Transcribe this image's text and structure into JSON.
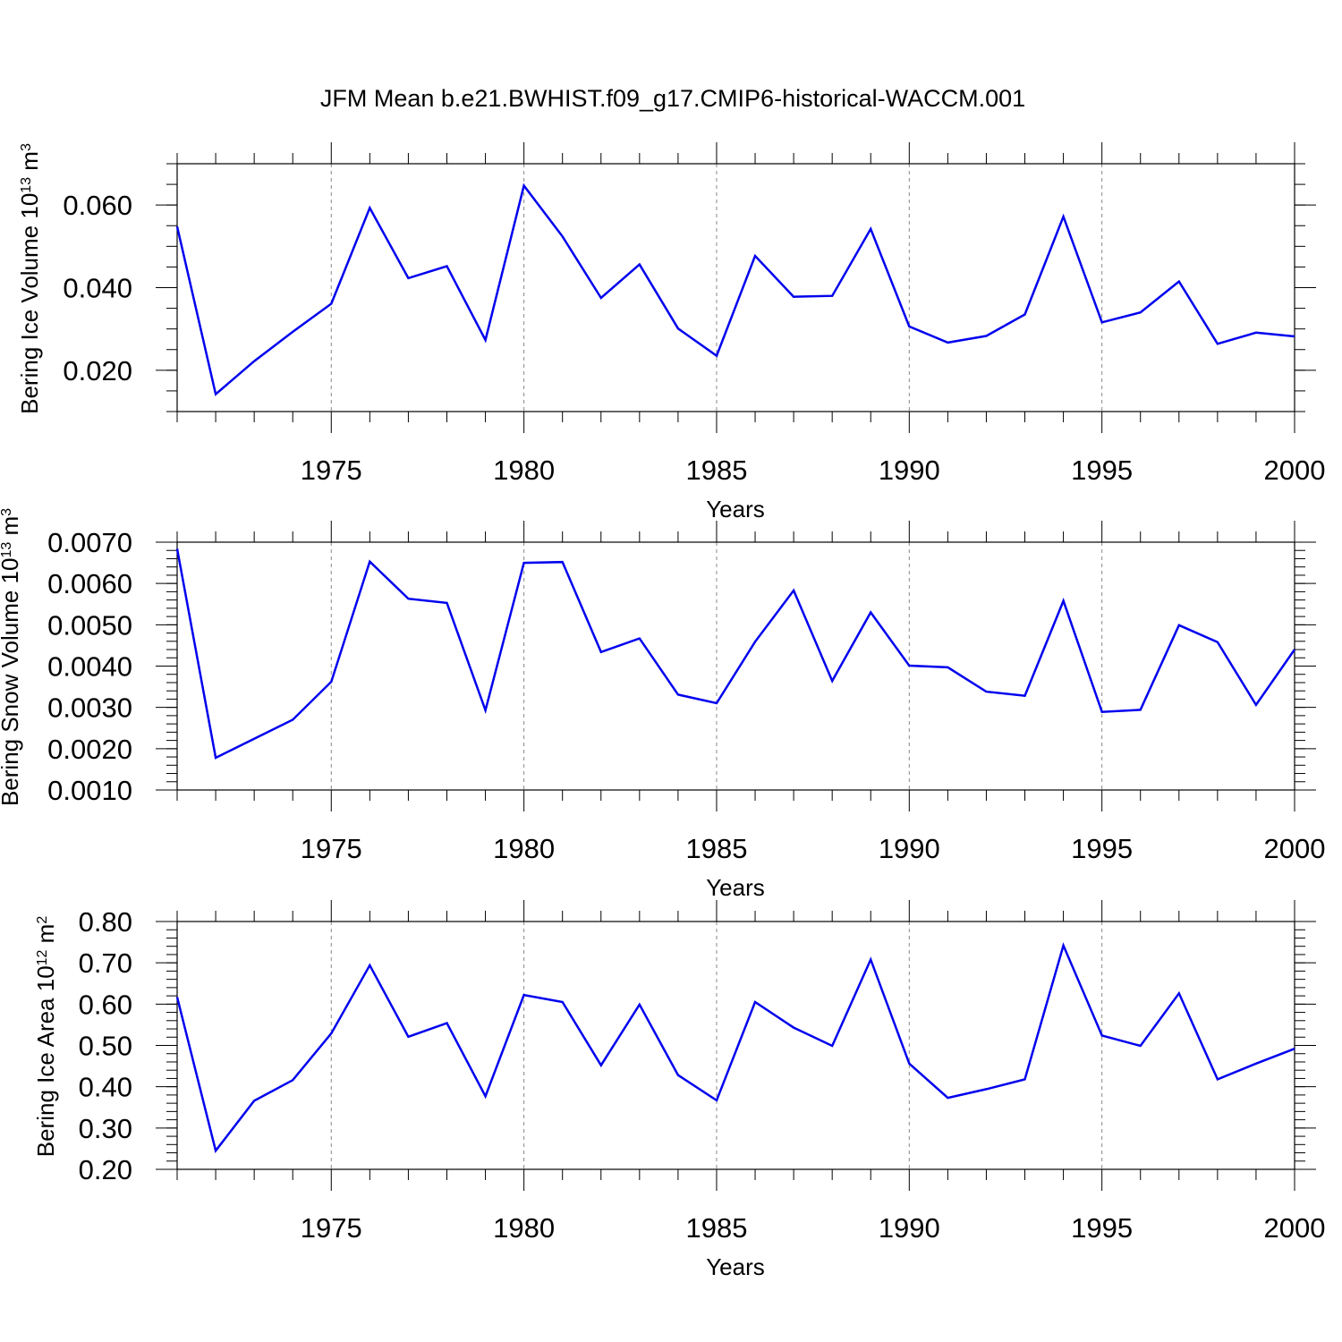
{
  "chart_data": {
    "title": "JFM Mean b.e21.BWHIST.f09_g17.CMIP6-historical-WACCM.001",
    "type": "line",
    "line_color": "#0000ee",
    "grid_color": "#888888",
    "x": [
      1971,
      1972,
      1973,
      1974,
      1975,
      1976,
      1977,
      1978,
      1979,
      1980,
      1981,
      1982,
      1983,
      1984,
      1985,
      1986,
      1987,
      1988,
      1989,
      1990,
      1991,
      1992,
      1993,
      1994,
      1995,
      1996,
      1997,
      1998,
      1999,
      2000
    ],
    "xlim": [
      1971,
      2000
    ],
    "x_ticks": [
      1975,
      1980,
      1985,
      1990,
      1995,
      2000
    ],
    "x_tick_labels": [
      "1975",
      "1980",
      "1985",
      "1990",
      "1995",
      "2000"
    ],
    "panels": [
      {
        "xlabel": "Years",
        "ylabel_main": "Bering Ice Volume 10",
        "ylabel_exp": "13",
        "ylabel_unit": " m",
        "ylabel_unit_exp": "3",
        "ylim": [
          0.01,
          0.07
        ],
        "y_ticks": [
          0.02,
          0.04,
          0.06
        ],
        "y_tick_labels": [
          "0.020",
          "0.040",
          "0.060"
        ],
        "y_minor_step": 0.005,
        "values": [
          0.0548,
          0.0142,
          0.0222,
          0.0293,
          0.0361,
          0.0593,
          0.0423,
          0.0452,
          0.0273,
          0.0647,
          0.0524,
          0.0375,
          0.0456,
          0.0301,
          0.0235,
          0.0477,
          0.0378,
          0.038,
          0.0542,
          0.0306,
          0.0267,
          0.0283,
          0.0335,
          0.0572,
          0.0316,
          0.034,
          0.0415,
          0.0264,
          0.0291,
          0.0282
        ]
      },
      {
        "xlabel": "Years",
        "ylabel_main": "Bering Snow Volume 10",
        "ylabel_exp": "13",
        "ylabel_unit": " m",
        "ylabel_unit_exp": "3",
        "ylim": [
          0.001,
          0.007
        ],
        "y_ticks": [
          0.001,
          0.002,
          0.003,
          0.004,
          0.005,
          0.006,
          0.007
        ],
        "y_tick_labels": [
          "0.0010",
          "0.0020",
          "0.0030",
          "0.0040",
          "0.0050",
          "0.0060",
          "0.0070"
        ],
        "y_minor_step": 0.0002,
        "values": [
          0.00684,
          0.00178,
          0.00224,
          0.0027,
          0.00362,
          0.00653,
          0.00563,
          0.00553,
          0.00293,
          0.0065,
          0.00652,
          0.00434,
          0.00467,
          0.00331,
          0.0031,
          0.00459,
          0.00583,
          0.00364,
          0.0053,
          0.00401,
          0.00397,
          0.00338,
          0.00328,
          0.00558,
          0.00289,
          0.00294,
          0.00499,
          0.00458,
          0.00306,
          0.0044
        ]
      },
      {
        "xlabel": "Years",
        "ylabel_main": "Bering Ice Area 10",
        "ylabel_exp": "12",
        "ylabel_unit": " m",
        "ylabel_unit_exp": "2",
        "ylim": [
          0.2,
          0.8
        ],
        "y_ticks": [
          0.2,
          0.3,
          0.4,
          0.5,
          0.6,
          0.7,
          0.8
        ],
        "y_tick_labels": [
          "0.20",
          "0.30",
          "0.40",
          "0.50",
          "0.60",
          "0.70",
          "0.80"
        ],
        "y_minor_step": 0.02,
        "values": [
          0.617,
          0.245,
          0.366,
          0.416,
          0.529,
          0.694,
          0.521,
          0.554,
          0.377,
          0.622,
          0.605,
          0.452,
          0.599,
          0.428,
          0.367,
          0.605,
          0.543,
          0.499,
          0.708,
          0.456,
          0.373,
          0.394,
          0.418,
          0.742,
          0.524,
          0.499,
          0.626,
          0.418,
          0.456,
          0.492
        ]
      }
    ]
  }
}
